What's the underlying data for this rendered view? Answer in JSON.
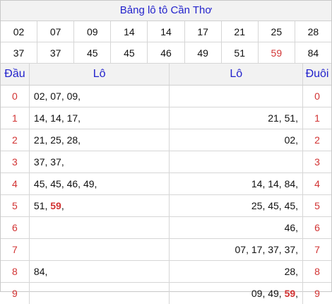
{
  "title": "Bảng lô tô Cần Thơ",
  "numbers_row1": [
    "02",
    "07",
    "09",
    "14",
    "14",
    "17",
    "21",
    "25",
    "28"
  ],
  "numbers_row2": [
    "37",
    "37",
    "45",
    "45",
    "46",
    "49",
    "51",
    "59",
    "84"
  ],
  "highlight_number": "59",
  "headers": {
    "dau": "Đầu",
    "lo_left": "Lô",
    "lo_right": "Lô",
    "duoi": "Đuôi"
  },
  "rows": [
    {
      "dau": "0",
      "left": "02, 07, 09,",
      "right": "",
      "duoi": "0"
    },
    {
      "dau": "1",
      "left": "14, 14, 17,",
      "right": "21, 51,",
      "duoi": "1"
    },
    {
      "dau": "2",
      "left": "21, 25, 28,",
      "right": "02,",
      "duoi": "2"
    },
    {
      "dau": "3",
      "left": "37, 37,",
      "right": "",
      "duoi": "3"
    },
    {
      "dau": "4",
      "left": "45, 45, 46, 49,",
      "right": "14, 14, 84,",
      "duoi": "4"
    },
    {
      "dau": "5",
      "left": "51, 59,",
      "right": "25, 45, 45,",
      "duoi": "5"
    },
    {
      "dau": "6",
      "left": "",
      "right": "46,",
      "duoi": "6"
    },
    {
      "dau": "7",
      "left": "",
      "right": "07, 17, 37, 37,",
      "duoi": "7"
    },
    {
      "dau": "8",
      "left": "84,",
      "right": "28,",
      "duoi": "8"
    },
    {
      "dau": "9",
      "left": "",
      "right": "09, 49, 59,",
      "duoi": "9"
    }
  ],
  "colors": {
    "title": "#2222cc",
    "accent": "#d23333",
    "header_bg": "#f2f2f2"
  }
}
